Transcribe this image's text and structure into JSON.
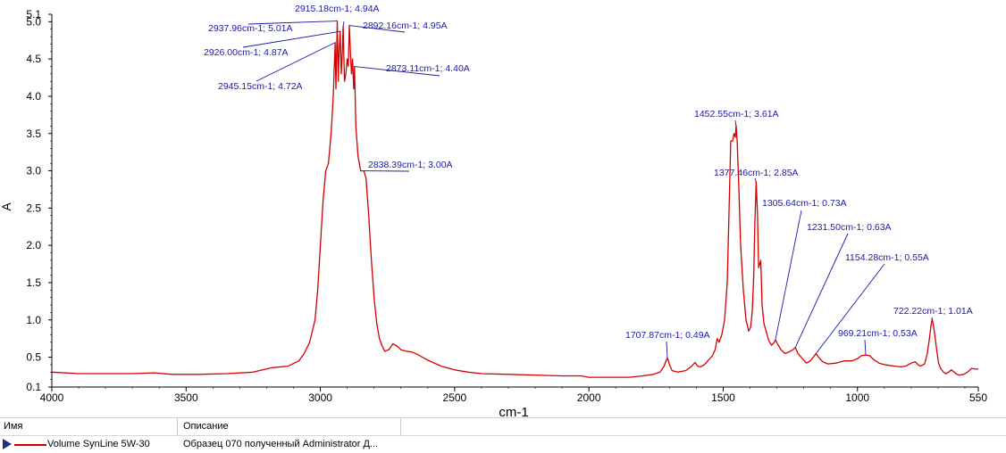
{
  "chart_data": {
    "type": "line",
    "xlabel": "cm-1",
    "ylabel": "A",
    "xlim": [
      4000,
      550
    ],
    "ylim": [
      0.1,
      5.1
    ],
    "x_ticks": [
      "4000",
      "3500",
      "3000",
      "2500",
      "2000",
      "1500",
      "1000",
      "550"
    ],
    "y_ticks": [
      "5.1",
      "5.0",
      "4.5",
      "4.0",
      "3.5",
      "3.0",
      "2.5",
      "2.0",
      "1.5",
      "1.0",
      "0.5",
      "0.1"
    ],
    "series": [
      {
        "name": "Volume SynLine 5W-30",
        "color": "#d40000",
        "points": [
          [
            4000,
            0.3
          ],
          [
            3900,
            0.28
          ],
          [
            3800,
            0.28
          ],
          [
            3700,
            0.28
          ],
          [
            3620,
            0.29
          ],
          [
            3550,
            0.27
          ],
          [
            3450,
            0.27
          ],
          [
            3350,
            0.28
          ],
          [
            3250,
            0.3
          ],
          [
            3180,
            0.36
          ],
          [
            3120,
            0.38
          ],
          [
            3080,
            0.45
          ],
          [
            3060,
            0.55
          ],
          [
            3040,
            0.7
          ],
          [
            3030,
            0.85
          ],
          [
            3020,
            1.0
          ],
          [
            3010,
            1.4
          ],
          [
            3000,
            2.0
          ],
          [
            2990,
            2.6
          ],
          [
            2980,
            3.0
          ],
          [
            2970,
            3.1
          ],
          [
            2960,
            3.5
          ],
          [
            2952,
            4.0
          ],
          [
            2945,
            4.72
          ],
          [
            2942,
            4.1
          ],
          [
            2937,
            5.01
          ],
          [
            2933,
            4.2
          ],
          [
            2930,
            4.6
          ],
          [
            2926,
            4.87
          ],
          [
            2922,
            4.3
          ],
          [
            2918,
            4.6
          ],
          [
            2915,
            4.94
          ],
          [
            2910,
            4.2
          ],
          [
            2905,
            4.3
          ],
          [
            2900,
            4.5
          ],
          [
            2896,
            4.4
          ],
          [
            2892,
            4.95
          ],
          [
            2888,
            4.6
          ],
          [
            2884,
            4.3
          ],
          [
            2880,
            4.5
          ],
          [
            2876,
            4.1
          ],
          [
            2873,
            4.4
          ],
          [
            2868,
            3.6
          ],
          [
            2860,
            3.2
          ],
          [
            2850,
            3.0
          ],
          [
            2838,
            3.0
          ],
          [
            2830,
            2.9
          ],
          [
            2820,
            2.4
          ],
          [
            2810,
            1.8
          ],
          [
            2800,
            1.3
          ],
          [
            2790,
            0.95
          ],
          [
            2780,
            0.75
          ],
          [
            2770,
            0.65
          ],
          [
            2760,
            0.58
          ],
          [
            2745,
            0.6
          ],
          [
            2730,
            0.68
          ],
          [
            2715,
            0.65
          ],
          [
            2700,
            0.6
          ],
          [
            2680,
            0.58
          ],
          [
            2660,
            0.57
          ],
          [
            2640,
            0.54
          ],
          [
            2600,
            0.46
          ],
          [
            2550,
            0.38
          ],
          [
            2500,
            0.33
          ],
          [
            2450,
            0.3
          ],
          [
            2400,
            0.28
          ],
          [
            2300,
            0.27
          ],
          [
            2200,
            0.26
          ],
          [
            2100,
            0.25
          ],
          [
            2030,
            0.25
          ],
          [
            2000,
            0.23
          ],
          [
            1950,
            0.23
          ],
          [
            1900,
            0.23
          ],
          [
            1850,
            0.23
          ],
          [
            1800,
            0.25
          ],
          [
            1760,
            0.27
          ],
          [
            1735,
            0.3
          ],
          [
            1720,
            0.38
          ],
          [
            1712,
            0.46
          ],
          [
            1707,
            0.49
          ],
          [
            1700,
            0.4
          ],
          [
            1690,
            0.32
          ],
          [
            1670,
            0.3
          ],
          [
            1640,
            0.32
          ],
          [
            1620,
            0.37
          ],
          [
            1605,
            0.43
          ],
          [
            1595,
            0.38
          ],
          [
            1585,
            0.37
          ],
          [
            1570,
            0.4
          ],
          [
            1555,
            0.46
          ],
          [
            1540,
            0.52
          ],
          [
            1530,
            0.6
          ],
          [
            1522,
            0.75
          ],
          [
            1515,
            0.7
          ],
          [
            1505,
            0.8
          ],
          [
            1495,
            1.0
          ],
          [
            1485,
            1.5
          ],
          [
            1478,
            2.5
          ],
          [
            1472,
            3.4
          ],
          [
            1465,
            3.4
          ],
          [
            1460,
            3.5
          ],
          [
            1455,
            3.45
          ],
          [
            1452,
            3.61
          ],
          [
            1448,
            3.4
          ],
          [
            1442,
            2.8
          ],
          [
            1435,
            2.0
          ],
          [
            1425,
            1.4
          ],
          [
            1415,
            1.0
          ],
          [
            1405,
            0.85
          ],
          [
            1398,
            0.9
          ],
          [
            1392,
            1.1
          ],
          [
            1386,
            1.6
          ],
          [
            1382,
            2.3
          ],
          [
            1377,
            2.85
          ],
          [
            1372,
            2.4
          ],
          [
            1368,
            1.7
          ],
          [
            1360,
            1.8
          ],
          [
            1355,
            1.2
          ],
          [
            1348,
            0.95
          ],
          [
            1340,
            0.85
          ],
          [
            1330,
            0.72
          ],
          [
            1320,
            0.66
          ],
          [
            1310,
            0.7
          ],
          [
            1305,
            0.73
          ],
          [
            1298,
            0.68
          ],
          [
            1285,
            0.6
          ],
          [
            1270,
            0.55
          ],
          [
            1255,
            0.57
          ],
          [
            1240,
            0.6
          ],
          [
            1231,
            0.63
          ],
          [
            1222,
            0.55
          ],
          [
            1205,
            0.48
          ],
          [
            1190,
            0.42
          ],
          [
            1175,
            0.45
          ],
          [
            1160,
            0.52
          ],
          [
            1154,
            0.55
          ],
          [
            1145,
            0.5
          ],
          [
            1130,
            0.44
          ],
          [
            1110,
            0.41
          ],
          [
            1080,
            0.42
          ],
          [
            1050,
            0.45
          ],
          [
            1020,
            0.45
          ],
          [
            1000,
            0.48
          ],
          [
            985,
            0.52
          ],
          [
            969,
            0.53
          ],
          [
            955,
            0.52
          ],
          [
            940,
            0.47
          ],
          [
            920,
            0.42
          ],
          [
            900,
            0.4
          ],
          [
            880,
            0.39
          ],
          [
            860,
            0.38
          ],
          [
            840,
            0.37
          ],
          [
            820,
            0.38
          ],
          [
            800,
            0.42
          ],
          [
            785,
            0.44
          ],
          [
            775,
            0.4
          ],
          [
            765,
            0.38
          ],
          [
            750,
            0.41
          ],
          [
            740,
            0.55
          ],
          [
            732,
            0.75
          ],
          [
            727,
            0.9
          ],
          [
            722,
            1.01
          ],
          [
            718,
            0.95
          ],
          [
            712,
            0.8
          ],
          [
            705,
            0.6
          ],
          [
            698,
            0.42
          ],
          [
            690,
            0.35
          ],
          [
            680,
            0.3
          ],
          [
            670,
            0.28
          ],
          [
            660,
            0.3
          ],
          [
            650,
            0.33
          ],
          [
            640,
            0.3
          ],
          [
            630,
            0.27
          ],
          [
            620,
            0.26
          ],
          [
            605,
            0.27
          ],
          [
            590,
            0.3
          ],
          [
            575,
            0.35
          ],
          [
            560,
            0.34
          ],
          [
            550,
            0.34
          ]
        ]
      }
    ],
    "annotations": [
      {
        "x": 2915.18,
        "y": 4.94,
        "label": "2915.18cm-1; 4.94A"
      },
      {
        "x": 2937.96,
        "y": 5.01,
        "label": "2937.96cm-1; 5.01A"
      },
      {
        "x": 2892.16,
        "y": 4.95,
        "label": "2892.16cm-1; 4.95A"
      },
      {
        "x": 2926.0,
        "y": 4.87,
        "label": "2926.00cm-1; 4.87A"
      },
      {
        "x": 2873.11,
        "y": 4.4,
        "label": "2873.11cm-1; 4.40A"
      },
      {
        "x": 2945.15,
        "y": 4.72,
        "label": "2945.15cm-1; 4.72A"
      },
      {
        "x": 2838.39,
        "y": 3.0,
        "label": "2838.39cm-1; 3.00A"
      },
      {
        "x": 1452.55,
        "y": 3.61,
        "label": "1452.55cm-1; 3.61A"
      },
      {
        "x": 1377.46,
        "y": 2.85,
        "label": "1377.46cm-1; 2.85A"
      },
      {
        "x": 1305.64,
        "y": 0.73,
        "label": "1305.64cm-1; 0.73A"
      },
      {
        "x": 1231.5,
        "y": 0.63,
        "label": "1231.50cm-1; 0.63A"
      },
      {
        "x": 1154.28,
        "y": 0.55,
        "label": "1154.28cm-1; 0.55A"
      },
      {
        "x": 722.22,
        "y": 1.01,
        "label": "722.22cm-1; 1.01A"
      },
      {
        "x": 1707.87,
        "y": 0.49,
        "label": "1707.87cm-1; 0.49A"
      },
      {
        "x": 969.21,
        "y": 0.53,
        "label": "969.21cm-1; 0.53A"
      }
    ],
    "grid": false,
    "legend": "bottom-table"
  },
  "legend_table": {
    "header_name": "Имя",
    "header_desc": "Описание",
    "rows": [
      {
        "name": "Volume SynLine 5W-30",
        "desc": "Образец 070 полученный Administrator Д..."
      }
    ]
  },
  "colors": {
    "series": "#d40000",
    "annotation": "#1a1aa8",
    "axis": "#000000"
  }
}
